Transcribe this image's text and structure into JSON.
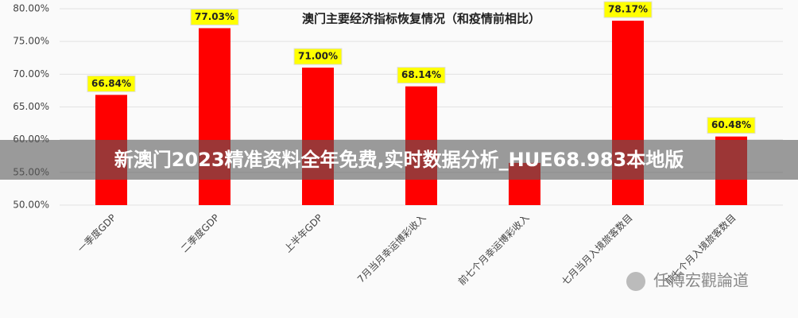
{
  "chart_data": {
    "type": "bar",
    "title": "澳门主要经济指标恢复情况（和疫情前相比）",
    "categories": [
      "一季度GDP",
      "二季度GDP",
      "上半年GDP",
      "7月当月幸运博彩收入",
      "前七个月幸运博彩收入",
      "七月当月入境旅客数目",
      "前七个月入境旅客数目"
    ],
    "values": [
      66.84,
      77.03,
      71.0,
      68.14,
      56.45,
      78.17,
      60.48
    ],
    "value_labels": [
      "66.84%",
      "77.03%",
      "71.00%",
      "68.14%",
      null,
      "78.17%",
      "60.48%"
    ],
    "color": "#ff0000",
    "label_color": "#ffff00",
    "ylim": [
      50,
      80
    ],
    "yticks": [
      {
        "value": 50,
        "label": "50.00%"
      },
      {
        "value": 55,
        "label": "55.00%"
      },
      {
        "value": 60,
        "label": "60.00%"
      },
      {
        "value": 65,
        "label": "65.00%"
      },
      {
        "value": 70,
        "label": "70.00%"
      },
      {
        "value": 75,
        "label": "75.00%"
      },
      {
        "value": 80,
        "label": "80.00%"
      }
    ],
    "grid": true
  },
  "banner": "新澳门2023精准资料全年免费,实时数据分析_HUE68.983本地版",
  "watermark": "任博宏觀論道"
}
